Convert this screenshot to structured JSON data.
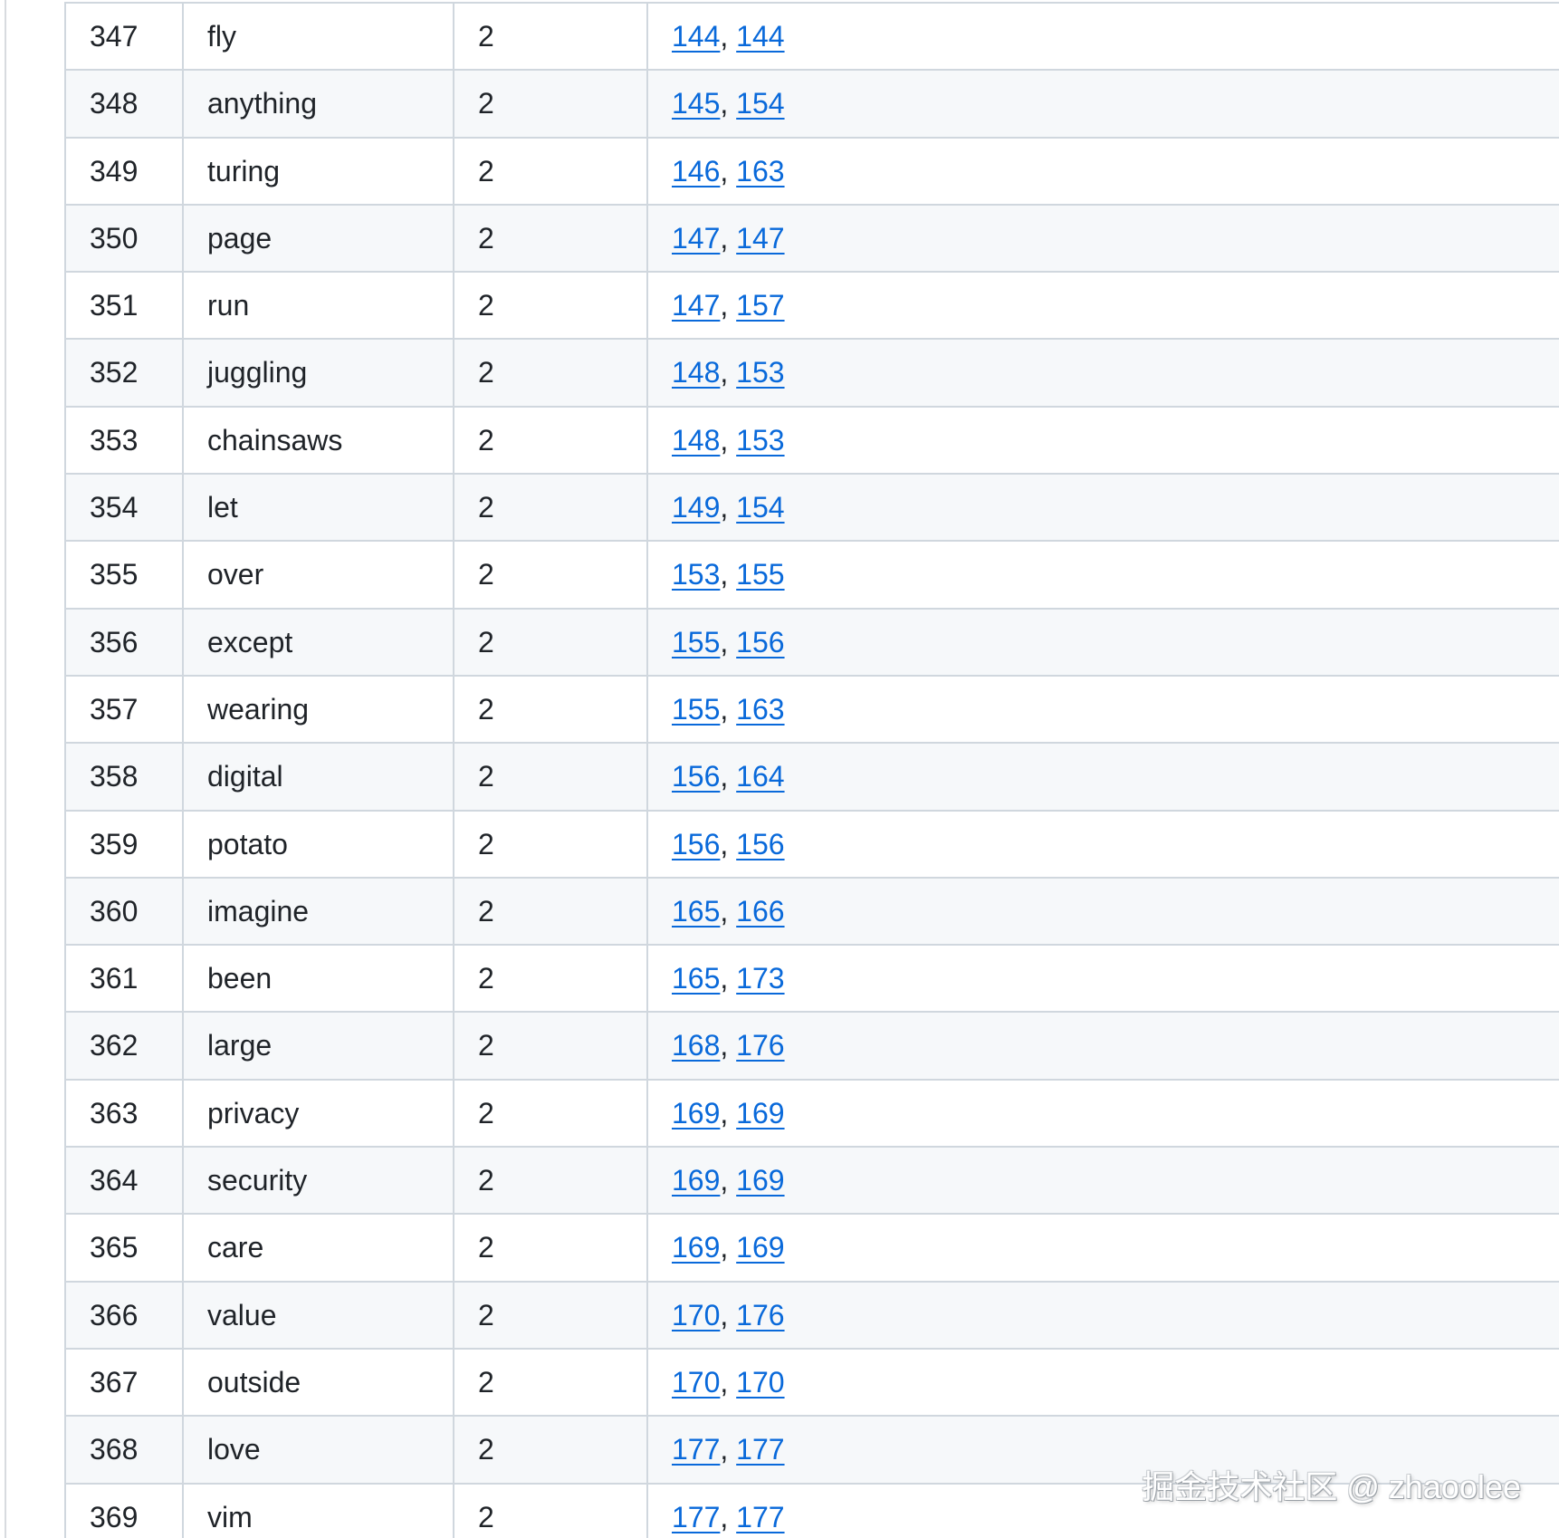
{
  "table": {
    "pages_separator": ", ",
    "count_value_for_all_rows": "2",
    "rows": [
      {
        "rank": "347",
        "word": "fly",
        "count": "2",
        "pages": [
          "144",
          "144"
        ]
      },
      {
        "rank": "348",
        "word": "anything",
        "count": "2",
        "pages": [
          "145",
          "154"
        ]
      },
      {
        "rank": "349",
        "word": "turing",
        "count": "2",
        "pages": [
          "146",
          "163"
        ]
      },
      {
        "rank": "350",
        "word": "page",
        "count": "2",
        "pages": [
          "147",
          "147"
        ]
      },
      {
        "rank": "351",
        "word": "run",
        "count": "2",
        "pages": [
          "147",
          "157"
        ]
      },
      {
        "rank": "352",
        "word": "juggling",
        "count": "2",
        "pages": [
          "148",
          "153"
        ]
      },
      {
        "rank": "353",
        "word": "chainsaws",
        "count": "2",
        "pages": [
          "148",
          "153"
        ]
      },
      {
        "rank": "354",
        "word": "let",
        "count": "2",
        "pages": [
          "149",
          "154"
        ]
      },
      {
        "rank": "355",
        "word": "over",
        "count": "2",
        "pages": [
          "153",
          "155"
        ]
      },
      {
        "rank": "356",
        "word": "except",
        "count": "2",
        "pages": [
          "155",
          "156"
        ]
      },
      {
        "rank": "357",
        "word": "wearing",
        "count": "2",
        "pages": [
          "155",
          "163"
        ]
      },
      {
        "rank": "358",
        "word": "digital",
        "count": "2",
        "pages": [
          "156",
          "164"
        ]
      },
      {
        "rank": "359",
        "word": "potato",
        "count": "2",
        "pages": [
          "156",
          "156"
        ]
      },
      {
        "rank": "360",
        "word": "imagine",
        "count": "2",
        "pages": [
          "165",
          "166"
        ]
      },
      {
        "rank": "361",
        "word": "been",
        "count": "2",
        "pages": [
          "165",
          "173"
        ]
      },
      {
        "rank": "362",
        "word": "large",
        "count": "2",
        "pages": [
          "168",
          "176"
        ]
      },
      {
        "rank": "363",
        "word": "privacy",
        "count": "2",
        "pages": [
          "169",
          "169"
        ]
      },
      {
        "rank": "364",
        "word": "security",
        "count": "2",
        "pages": [
          "169",
          "169"
        ]
      },
      {
        "rank": "365",
        "word": "care",
        "count": "2",
        "pages": [
          "169",
          "169"
        ]
      },
      {
        "rank": "366",
        "word": "value",
        "count": "2",
        "pages": [
          "170",
          "176"
        ]
      },
      {
        "rank": "367",
        "word": "outside",
        "count": "2",
        "pages": [
          "170",
          "170"
        ]
      },
      {
        "rank": "368",
        "word": "love",
        "count": "2",
        "pages": [
          "177",
          "177"
        ]
      },
      {
        "rank": "369",
        "word": "vim",
        "count": "2",
        "pages": [
          "177",
          "177"
        ]
      }
    ]
  },
  "watermark": {
    "text": "掘金技术社区 @ zhaoolee"
  },
  "colors": {
    "link": "#0969da",
    "row_stripe": "#f6f8fa",
    "border": "#d0d7de",
    "text": "#1f2328"
  }
}
